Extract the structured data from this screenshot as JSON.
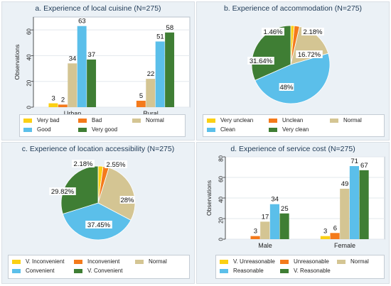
{
  "colors": {
    "yellow": "#fbd014",
    "orange": "#f47a1b",
    "tan": "#d4c593",
    "blue": "#5bbfea",
    "green": "#3f7e34"
  },
  "chart_data": [
    {
      "type": "bar",
      "title": "a. Experience of local cuisine (N=275)",
      "ylabel": "Observations",
      "ylim": [
        0,
        70
      ],
      "yticks": [
        0,
        20,
        40,
        60
      ],
      "grid": true,
      "categories": [
        "Urban",
        "Rural"
      ],
      "series": [
        {
          "name": "Very bad",
          "color": "#fbd014",
          "values": [
            3,
            null
          ]
        },
        {
          "name": "Bad",
          "color": "#f47a1b",
          "values": [
            2,
            5
          ]
        },
        {
          "name": "Normal",
          "color": "#d4c593",
          "values": [
            34,
            22
          ]
        },
        {
          "name": "Good",
          "color": "#5bbfea",
          "values": [
            63,
            51
          ]
        },
        {
          "name": "Very good",
          "color": "#3f7e34",
          "values": [
            37,
            58
          ]
        }
      ],
      "legend_position": "bottom"
    },
    {
      "type": "pie",
      "title": "b. Experience of accommodation (N=275)",
      "slices": [
        {
          "name": "Very unclean",
          "color": "#fbd014",
          "value": 1.46,
          "label": "1.46%"
        },
        {
          "name": "Unclean",
          "color": "#f47a1b",
          "value": 2.18,
          "label": "2.18%"
        },
        {
          "name": "Normal",
          "color": "#d4c593",
          "value": 16.72,
          "label": "16.72%"
        },
        {
          "name": "Clean",
          "color": "#5bbfea",
          "value": 48,
          "label": "48%"
        },
        {
          "name": "Very clean",
          "color": "#3f7e34",
          "value": 31.64,
          "label": "31.64%"
        }
      ],
      "legend_position": "bottom"
    },
    {
      "type": "pie",
      "title": "c. Experience of location accessibility (N=275)",
      "slices": [
        {
          "name": "V. Inconvenient",
          "color": "#fbd014",
          "value": 2.18,
          "label": "2.18%"
        },
        {
          "name": "Inconvenient",
          "color": "#f47a1b",
          "value": 2.55,
          "label": "2.55%"
        },
        {
          "name": "Normal",
          "color": "#d4c593",
          "value": 28,
          "label": "28%"
        },
        {
          "name": "Convenient",
          "color": "#5bbfea",
          "value": 37.45,
          "label": "37.45%"
        },
        {
          "name": "V. Convenient",
          "color": "#3f7e34",
          "value": 29.82,
          "label": "29.82%"
        }
      ],
      "legend_position": "bottom"
    },
    {
      "type": "bar",
      "title": "d. Experience of service cost (N=275)",
      "ylabel": "Observations",
      "ylim": [
        0,
        80
      ],
      "yticks": [
        0,
        20,
        40,
        60,
        80
      ],
      "grid": true,
      "categories": [
        "Male",
        "Female"
      ],
      "series": [
        {
          "name": "V. Unreasonable",
          "color": "#fbd014",
          "values": [
            null,
            3
          ]
        },
        {
          "name": "Unreasonable",
          "color": "#f47a1b",
          "values": [
            3,
            6
          ]
        },
        {
          "name": "Normal",
          "color": "#d4c593",
          "values": [
            17,
            49
          ]
        },
        {
          "name": "Reasonable",
          "color": "#5bbfea",
          "values": [
            34,
            71
          ]
        },
        {
          "name": "V. Reasonable",
          "color": "#3f7e34",
          "values": [
            25,
            67
          ]
        }
      ],
      "legend_position": "bottom"
    }
  ]
}
